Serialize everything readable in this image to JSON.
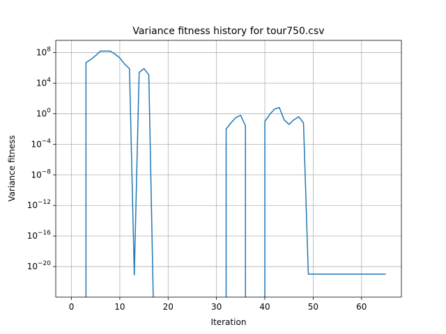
{
  "chart_data": {
    "type": "line",
    "title": "Variance fitness history for tour750.csv",
    "xlabel": "Iteration",
    "ylabel": "Variance fitness",
    "xlim": [
      -3.25,
      68.25
    ],
    "ylim_log10": [
      -24,
      9.6
    ],
    "yscale": "log",
    "grid": true,
    "xticks": [
      0,
      10,
      20,
      30,
      40,
      50,
      60
    ],
    "yticks_exponent": [
      8,
      4,
      0,
      -4,
      -8,
      -12,
      -16,
      -20
    ],
    "series": [
      {
        "color": "#1f77b4",
        "points": [
          {
            "x": 3,
            "log10_y": null
          },
          {
            "x": 3,
            "log10_y": 6.7
          },
          {
            "x": 4,
            "log10_y": 7.1
          },
          {
            "x": 5,
            "log10_y": 7.6
          },
          {
            "x": 6,
            "log10_y": 8.2
          },
          {
            "x": 7,
            "log10_y": 8.2
          },
          {
            "x": 8,
            "log10_y": 8.2
          },
          {
            "x": 9,
            "log10_y": 7.8
          },
          {
            "x": 10,
            "log10_y": 7.3
          },
          {
            "x": 11,
            "log10_y": 6.5
          },
          {
            "x": 12,
            "log10_y": 5.9
          },
          {
            "x": 13,
            "log10_y": -21.1
          },
          {
            "x": 14,
            "log10_y": 5.4
          },
          {
            "x": 15,
            "log10_y": 5.9
          },
          {
            "x": 16,
            "log10_y": 5.1
          },
          {
            "x": 17,
            "log10_y": null
          },
          {
            "x": 32,
            "log10_y": null
          },
          {
            "x": 32,
            "log10_y": -2.0
          },
          {
            "x": 33,
            "log10_y": -1.2
          },
          {
            "x": 34,
            "log10_y": -0.5
          },
          {
            "x": 35,
            "log10_y": -0.2
          },
          {
            "x": 36,
            "log10_y": -1.6
          },
          {
            "x": 36,
            "log10_y": null
          },
          {
            "x": 40,
            "log10_y": null
          },
          {
            "x": 40,
            "log10_y": -1.0
          },
          {
            "x": 41,
            "log10_y": -0.1
          },
          {
            "x": 42,
            "log10_y": 0.6
          },
          {
            "x": 43,
            "log10_y": 0.8
          },
          {
            "x": 44,
            "log10_y": -0.8
          },
          {
            "x": 45,
            "log10_y": -1.4
          },
          {
            "x": 46,
            "log10_y": -0.8
          },
          {
            "x": 47,
            "log10_y": -0.4
          },
          {
            "x": 48,
            "log10_y": -1.2
          },
          {
            "x": 49,
            "log10_y": -21.0
          },
          {
            "x": 50,
            "log10_y": -21.0
          },
          {
            "x": 55,
            "log10_y": -21.0
          },
          {
            "x": 60,
            "log10_y": -21.0
          },
          {
            "x": 65,
            "log10_y": -21.0
          }
        ]
      }
    ]
  }
}
